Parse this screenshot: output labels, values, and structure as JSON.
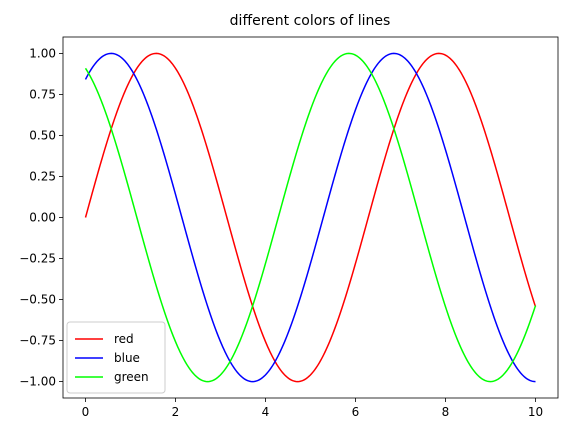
{
  "chart_data": {
    "type": "line",
    "title": "different colors of lines",
    "xlabel": "",
    "ylabel": "",
    "xlim": [
      -0.5,
      10.5
    ],
    "ylim": [
      -1.1,
      1.1
    ],
    "x_ticks": [
      0,
      2,
      4,
      6,
      8,
      10
    ],
    "y_ticks": [
      -1.0,
      -0.75,
      -0.5,
      -0.25,
      0.0,
      0.25,
      0.5,
      0.75,
      1.0
    ],
    "x_tick_labels": [
      "0",
      "2",
      "4",
      "6",
      "8",
      "10"
    ],
    "y_tick_labels": [
      "−1.00",
      "−0.75",
      "−0.50",
      "−0.25",
      "0.00",
      "0.25",
      "0.50",
      "0.75",
      "1.00"
    ],
    "grid": false,
    "legend_position": "bottom-left",
    "x_range": [
      0,
      10
    ],
    "series": [
      {
        "name": "red",
        "color": "#ff0000",
        "function": "sin(x)"
      },
      {
        "name": "blue",
        "color": "#0000ff",
        "function": "sin(x+1)"
      },
      {
        "name": "green",
        "color": "#00ff00",
        "function": "sin(x+2)"
      }
    ]
  }
}
